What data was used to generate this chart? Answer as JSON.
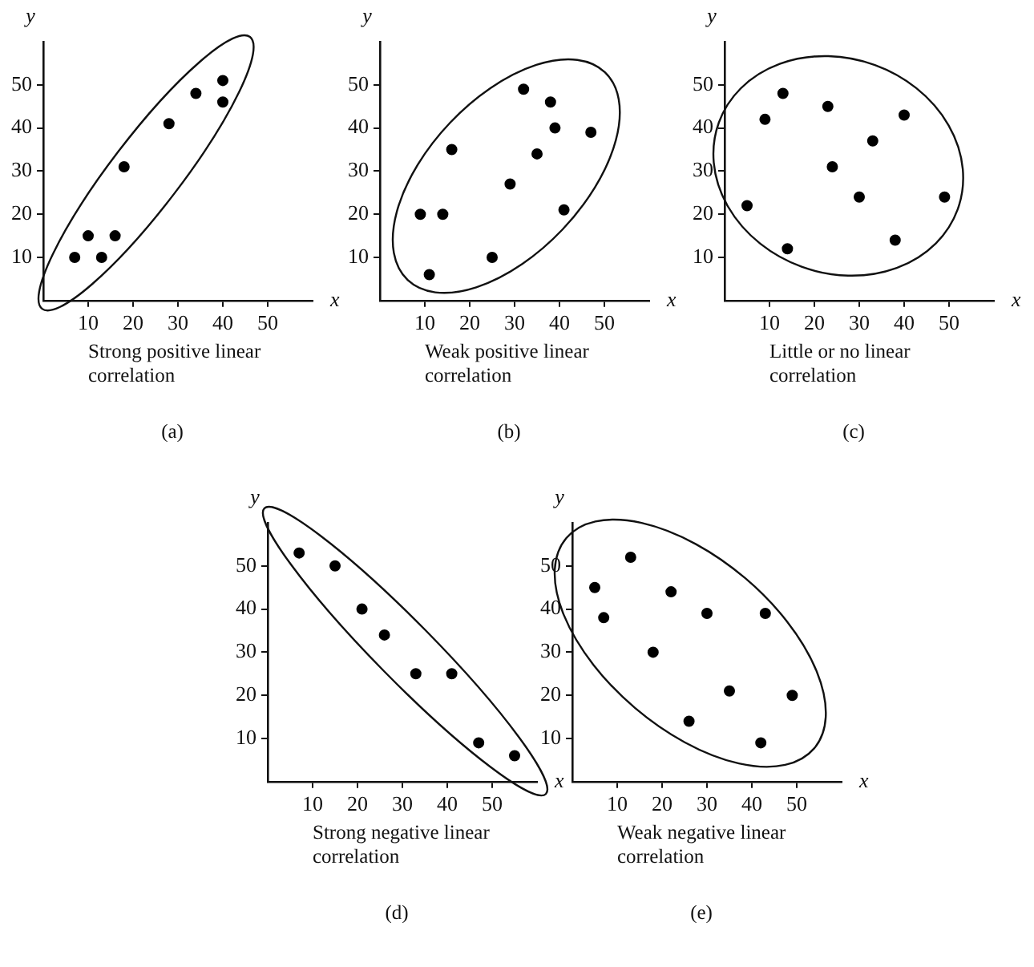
{
  "chart_data": [
    {
      "type": "scatter",
      "xlabel": "x",
      "ylabel": "y",
      "xlim": [
        0,
        60
      ],
      "ylim": [
        0,
        60
      ],
      "xticks": [
        10,
        20,
        30,
        40,
        50
      ],
      "yticks": [
        10,
        20,
        30,
        40,
        50
      ],
      "grid": false,
      "legend": false,
      "marker": "circle",
      "series": [
        {
          "color": "#000000",
          "x": [
            7,
            10,
            13,
            16,
            18,
            28,
            34,
            40,
            40
          ],
          "values": [
            10,
            15,
            10,
            15,
            31,
            41,
            48,
            51,
            46
          ]
        }
      ],
      "annotations": [
        "Strong positive linear correlation",
        "(a)"
      ]
    },
    {
      "type": "scatter",
      "xlabel": "x",
      "ylabel": "y",
      "xlim": [
        0,
        60
      ],
      "ylim": [
        0,
        60
      ],
      "xticks": [
        10,
        20,
        30,
        40,
        50
      ],
      "yticks": [
        10,
        20,
        30,
        40,
        50
      ],
      "grid": false,
      "legend": false,
      "marker": "circle",
      "series": [
        {
          "color": "#000000",
          "x": [
            9,
            11,
            14,
            16,
            25,
            29,
            32,
            35,
            38,
            39,
            41,
            47
          ],
          "values": [
            20,
            6,
            20,
            35,
            10,
            27,
            49,
            34,
            46,
            40,
            21,
            39
          ]
        }
      ],
      "annotations": [
        "Weak positive linear correlation",
        "(b)"
      ]
    },
    {
      "type": "scatter",
      "xlabel": "x",
      "ylabel": "y",
      "xlim": [
        0,
        60
      ],
      "ylim": [
        0,
        60
      ],
      "xticks": [
        10,
        20,
        30,
        40,
        50
      ],
      "yticks": [
        10,
        20,
        30,
        40,
        50
      ],
      "grid": false,
      "legend": false,
      "marker": "circle",
      "series": [
        {
          "color": "#000000",
          "x": [
            5,
            9,
            13,
            14,
            23,
            24,
            30,
            33,
            38,
            40,
            49
          ],
          "values": [
            22,
            42,
            48,
            12,
            45,
            31,
            24,
            37,
            14,
            43,
            24
          ]
        }
      ],
      "annotations": [
        "Little or no linear correlation",
        "(c)"
      ]
    },
    {
      "type": "scatter",
      "xlabel": "x",
      "ylabel": "y",
      "xlim": [
        0,
        60
      ],
      "ylim": [
        0,
        60
      ],
      "xticks": [
        10,
        20,
        30,
        40,
        50
      ],
      "yticks": [
        10,
        20,
        30,
        40,
        50
      ],
      "grid": false,
      "legend": false,
      "marker": "circle",
      "series": [
        {
          "color": "#000000",
          "x": [
            7,
            15,
            21,
            26,
            33,
            41,
            47,
            55
          ],
          "values": [
            53,
            50,
            40,
            34,
            25,
            25,
            9,
            6
          ]
        }
      ],
      "annotations": [
        "Strong negative linear correlation",
        "(d)"
      ]
    },
    {
      "type": "scatter",
      "xlabel": "x",
      "ylabel": "y",
      "xlim": [
        0,
        60
      ],
      "ylim": [
        0,
        60
      ],
      "xticks": [
        10,
        20,
        30,
        40,
        50
      ],
      "yticks": [
        10,
        20,
        30,
        40,
        50
      ],
      "grid": false,
      "legend": false,
      "marker": "circle",
      "series": [
        {
          "color": "#000000",
          "x": [
            5,
            7,
            13,
            18,
            22,
            26,
            30,
            35,
            43,
            42,
            49
          ],
          "values": [
            45,
            38,
            52,
            30,
            44,
            14,
            39,
            21,
            39,
            9,
            20
          ]
        }
      ],
      "annotations": [
        "Weak negative linear correlation",
        "(e)"
      ]
    }
  ]
}
